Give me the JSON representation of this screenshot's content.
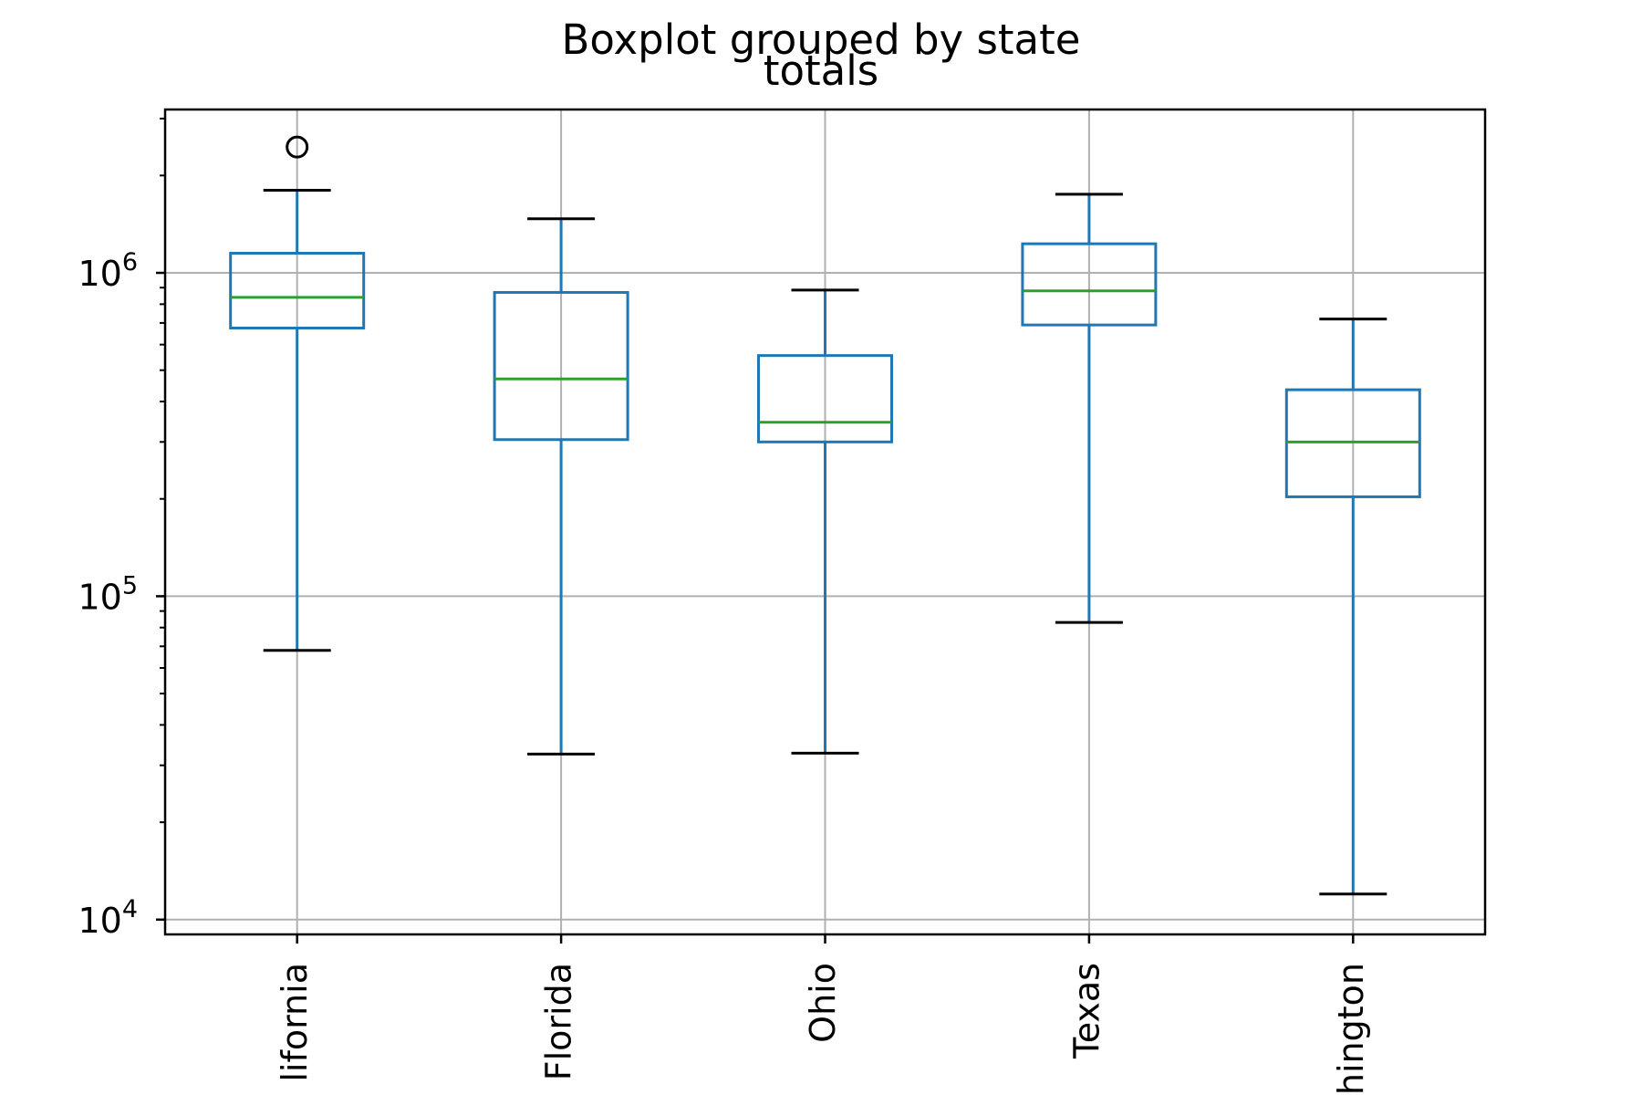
{
  "chart_data": {
    "type": "box",
    "suptitle": "Boxplot grouped by state",
    "title": "totals",
    "xlabel": "",
    "ylabel": "",
    "yscale": "log",
    "ylim": [
      9000,
      3200000
    ],
    "y_ticks": [
      {
        "base": "10",
        "exp": "4",
        "value": 10000
      },
      {
        "base": "10",
        "exp": "5",
        "value": 100000
      },
      {
        "base": "10",
        "exp": "6",
        "value": 1000000
      }
    ],
    "grid": true,
    "categories": [
      "California",
      "Florida",
      "Ohio",
      "Texas",
      "Washington"
    ],
    "category_labels_visible": [
      "lifornia",
      "Florida",
      "Ohio",
      "Texas",
      "hington"
    ],
    "boxes": [
      {
        "name": "California",
        "whislo": 68000,
        "q1": 675000,
        "med": 840000,
        "q3": 1150000,
        "whishi": 1800000,
        "fliers": [
          2450000
        ]
      },
      {
        "name": "Florida",
        "whislo": 32500,
        "q1": 305000,
        "med": 470000,
        "q3": 870000,
        "whishi": 1470000,
        "fliers": []
      },
      {
        "name": "Ohio",
        "whislo": 32700,
        "q1": 300000,
        "med": 345000,
        "q3": 555000,
        "whishi": 885000,
        "fliers": []
      },
      {
        "name": "Texas",
        "whislo": 83000,
        "q1": 690000,
        "med": 880000,
        "q3": 1230000,
        "whishi": 1750000,
        "fliers": []
      },
      {
        "name": "Washington",
        "whislo": 12000,
        "q1": 203000,
        "med": 300000,
        "q3": 435000,
        "whishi": 720000,
        "fliers": []
      }
    ],
    "colors": {
      "box": "#1f77b4",
      "median": "#2ca02c",
      "cap": "#000000",
      "flier": "#000000",
      "grid": "#b0b0b0",
      "axis": "#000000"
    }
  }
}
